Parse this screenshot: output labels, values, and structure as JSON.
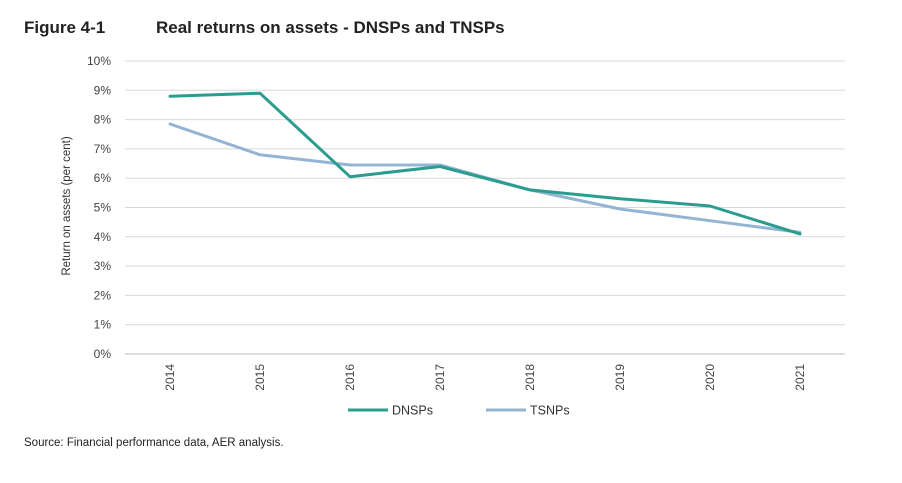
{
  "figure": {
    "number": "Figure 4-1",
    "title": "Real returns on assets - DNSPs and TNSPs",
    "source": "Source: Financial performance data, AER analysis."
  },
  "chart_data": {
    "type": "line",
    "title": "Real returns on assets - DNSPs and TNSPs",
    "xlabel": "",
    "ylabel": "Return on assets (per cent)",
    "categories": [
      "2014",
      "2015",
      "2016",
      "2017",
      "2018",
      "2019",
      "2020",
      "2021"
    ],
    "ylim": [
      0,
      10
    ],
    "yticks": [
      "0%",
      "1%",
      "2%",
      "3%",
      "4%",
      "5%",
      "6%",
      "7%",
      "8%",
      "9%",
      "10%"
    ],
    "grid": true,
    "legend_position": "bottom",
    "series": [
      {
        "name": "DNSPs",
        "color": "#2a9d8f",
        "values": [
          8.8,
          8.9,
          6.05,
          6.4,
          5.6,
          5.3,
          5.05,
          4.1
        ]
      },
      {
        "name": "TSNPs",
        "color": "#93b4d3",
        "values": [
          7.85,
          6.8,
          6.45,
          6.45,
          5.6,
          4.95,
          4.55,
          4.15
        ]
      }
    ]
  }
}
